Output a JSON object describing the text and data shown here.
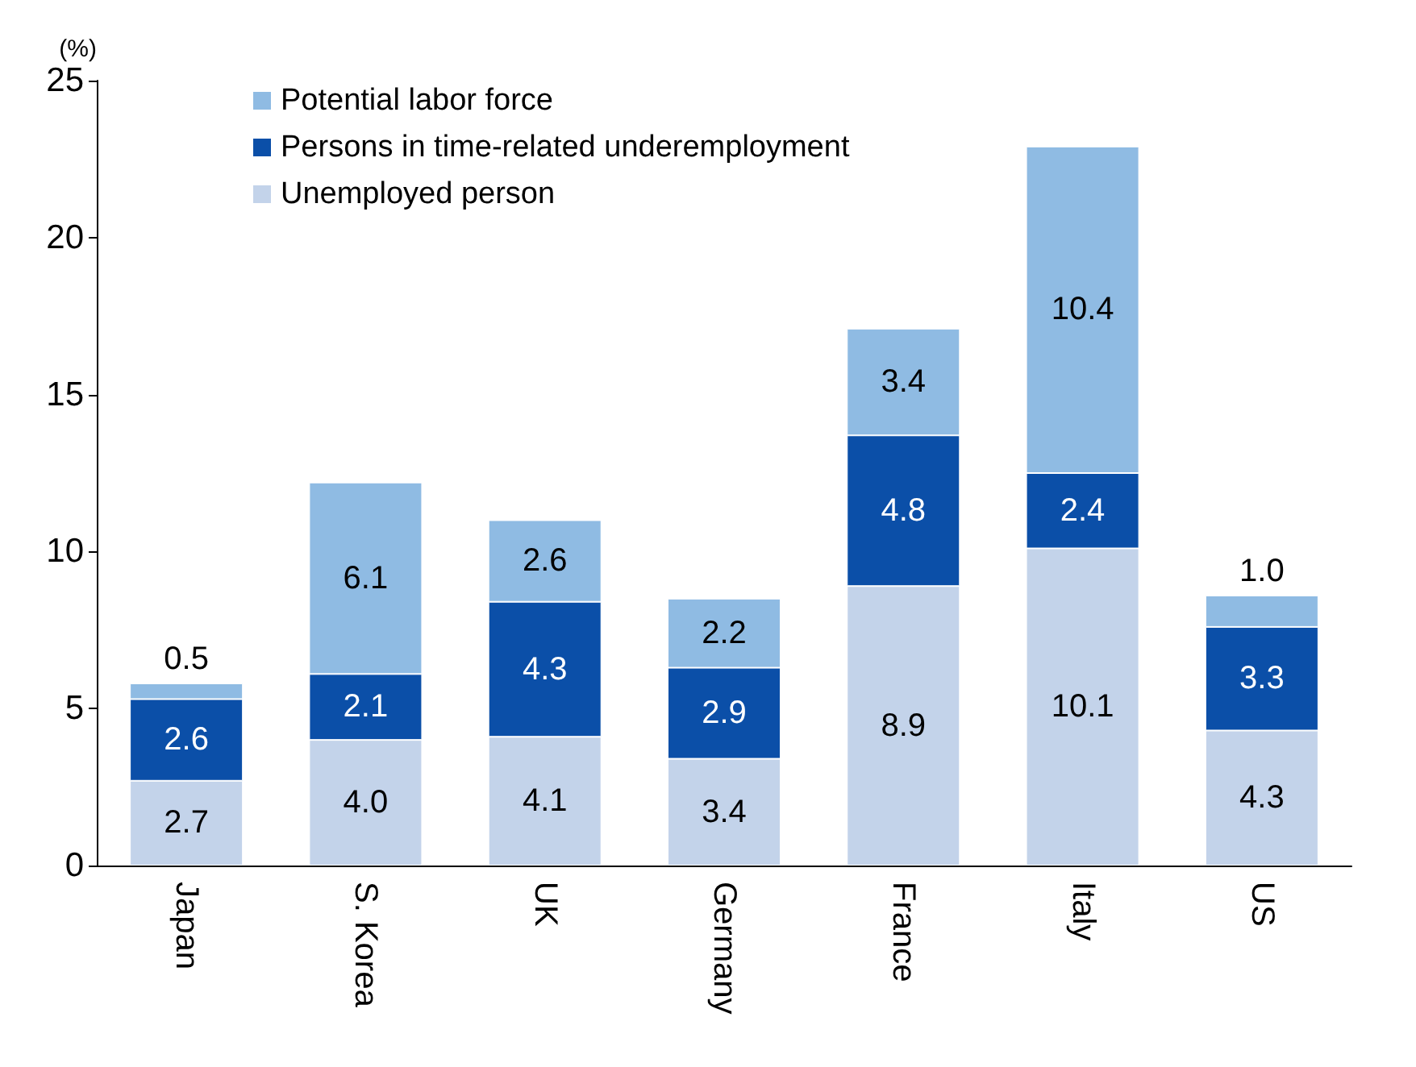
{
  "chart_data": {
    "type": "bar",
    "stacked": true,
    "ylabel": "(%)",
    "categories": [
      "Japan",
      "S. Korea",
      "UK",
      "Germany",
      "France",
      "Italy",
      "US"
    ],
    "series": [
      {
        "name": "Unemployed person",
        "color": "#c3d3ea",
        "values": [
          2.7,
          4.0,
          4.1,
          3.4,
          8.9,
          10.1,
          4.3
        ],
        "value_labels": [
          "2.7",
          "4.0",
          "4.1",
          "3.4",
          "8.9",
          "10.1",
          "4.3"
        ]
      },
      {
        "name": "Persons in time-related underemployment",
        "color": "#0b4fa8",
        "values": [
          2.6,
          2.1,
          4.3,
          2.9,
          4.8,
          2.4,
          3.3
        ],
        "value_labels": [
          "2.6",
          "2.1",
          "4.3",
          "2.9",
          "4.8",
          "2.4",
          "3.3"
        ]
      },
      {
        "name": "Potential labor force",
        "color": "#8fbbe3",
        "values": [
          0.5,
          6.1,
          2.6,
          2.2,
          3.4,
          10.4,
          1.0
        ],
        "value_labels": [
          "0.5",
          "6.1",
          "2.6",
          "2.2",
          "3.4",
          "10.4",
          "1.0"
        ]
      }
    ],
    "ylim": [
      0,
      25
    ],
    "yticks": [
      0,
      5,
      10,
      15,
      20,
      25
    ],
    "grid": false,
    "legend": "top left"
  }
}
